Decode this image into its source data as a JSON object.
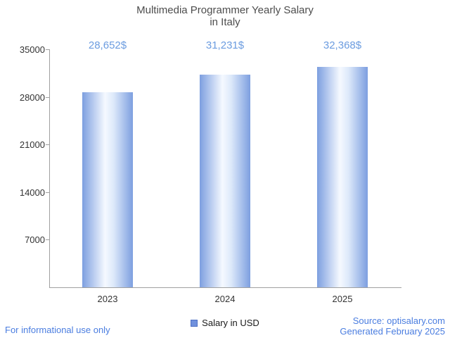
{
  "chart_data": {
    "type": "bar",
    "title_line1": "Multimedia Programmer Yearly Salary",
    "title_line2": "in Italy",
    "categories": [
      "2023",
      "2024",
      "2025"
    ],
    "values": [
      28652,
      31231,
      32368
    ],
    "value_labels": [
      "28,652$",
      "31,231$",
      "32,368$"
    ],
    "ylim": [
      0,
      35000
    ],
    "yticks": [
      7000,
      14000,
      21000,
      28000,
      35000
    ],
    "grid": false,
    "legend_position": "bottom",
    "legend_label": "Salary in USD",
    "xlabel": "",
    "ylabel": ""
  },
  "colors": {
    "bar_edge": "#7d9fe0",
    "bar_center": "#f5f9ff",
    "value_label": "#6b9ce0",
    "link_blue": "#4a7de0",
    "title_gray": "#4d4d4d",
    "axis_gray": "#a0a0a0"
  },
  "footer": {
    "left_note": "For informational use only",
    "source": "Source: optisalary.com",
    "generated": "Generated February 2025"
  }
}
